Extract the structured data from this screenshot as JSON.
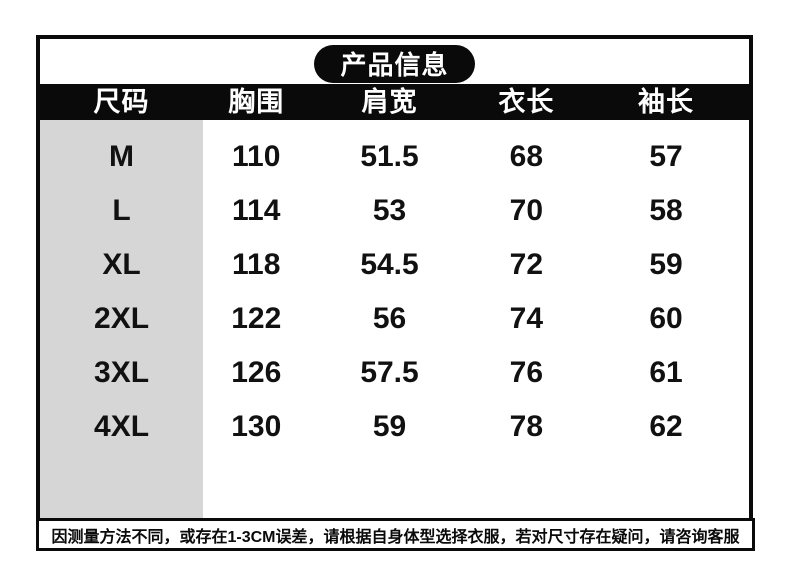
{
  "chart_data": {
    "type": "table",
    "title": "产品信息",
    "columns": [
      "尺码",
      "胸围",
      "肩宽",
      "衣长",
      "袖长"
    ],
    "rows": [
      [
        "M",
        "110",
        "51.5",
        "68",
        "57"
      ],
      [
        "L",
        "114",
        "53",
        "70",
        "58"
      ],
      [
        "XL",
        "118",
        "54.5",
        "72",
        "59"
      ],
      [
        "2XL",
        "122",
        "56",
        "74",
        "60"
      ],
      [
        "3XL",
        "126",
        "57.5",
        "76",
        "61"
      ],
      [
        "4XL",
        "130",
        "59",
        "78",
        "62"
      ]
    ]
  },
  "notice": {
    "text": "因测量方法不同，或存在1-3CM误差，请根据自身体型选择衣服，若对尺寸存在疑问，请咨询客服"
  },
  "colors": {
    "black": "#0a0a0a",
    "size_column_gray": "#d6d6d6",
    "white": "#ffffff"
  }
}
